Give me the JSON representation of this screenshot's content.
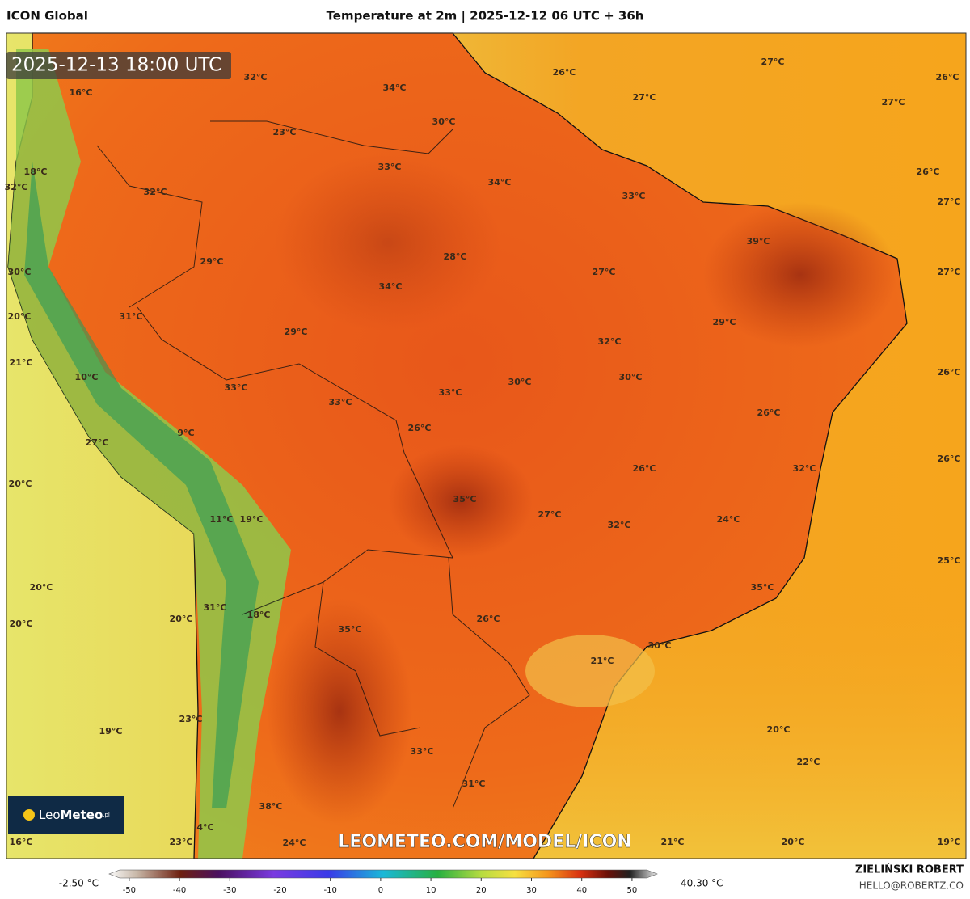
{
  "header": {
    "model": "ICON Global",
    "title": "Temperature at 2m | 2025-12-12 06 UTC + 36h"
  },
  "timestamp": "2025-12-13 18:00 UTC",
  "watermark": "LEOMETEO.COM/MODEL/ICON",
  "logo": {
    "prefix": "Leo",
    "name": "Meteo",
    "suffix": ".pl"
  },
  "map_labels": [
    "16°C",
    "32°C",
    "34°C",
    "26°C",
    "27°C",
    "26°C",
    "23°C",
    "30°C",
    "27°C",
    "27°C",
    "18°C",
    "33°C",
    "34°C",
    "33°C",
    "26°C",
    "32°C",
    "32°C",
    "27°C",
    "39°C",
    "29°C",
    "28°C",
    "27°C",
    "30°C",
    "34°C",
    "27°C",
    "31°C",
    "29°C",
    "20°C",
    "29°C",
    "32°C",
    "21°C",
    "10°C",
    "30°C",
    "30°C",
    "26°C",
    "33°C",
    "33°C",
    "33°C",
    "26°C",
    "26°C",
    "9°C",
    "27°C",
    "26°C",
    "20°C",
    "26°C",
    "32°C",
    "35°C",
    "27°C",
    "11°C",
    "19°C",
    "32°C",
    "24°C",
    "25°C",
    "20°C",
    "35°C",
    "31°C",
    "18°C",
    "20°C",
    "20°C",
    "35°C",
    "26°C",
    "30°C",
    "21°C",
    "23°C",
    "19°C",
    "20°C",
    "22°C",
    "33°C",
    "31°C",
    "38°C",
    "4°C",
    "16°C",
    "23°C",
    "24°C",
    "21°C",
    "20°C",
    "19°C"
  ],
  "colorbar": {
    "min_label": "-2.50 °C",
    "max_label": "40.30 °C",
    "lim": [
      -54,
      55
    ],
    "ticks": [
      -50,
      -40,
      -30,
      -20,
      -10,
      0,
      10,
      20,
      30,
      40,
      50
    ]
  },
  "credit": {
    "author": "ZIELIŃSKI ROBERT",
    "contact": "HELLO@ROBERTZ.CO"
  }
}
